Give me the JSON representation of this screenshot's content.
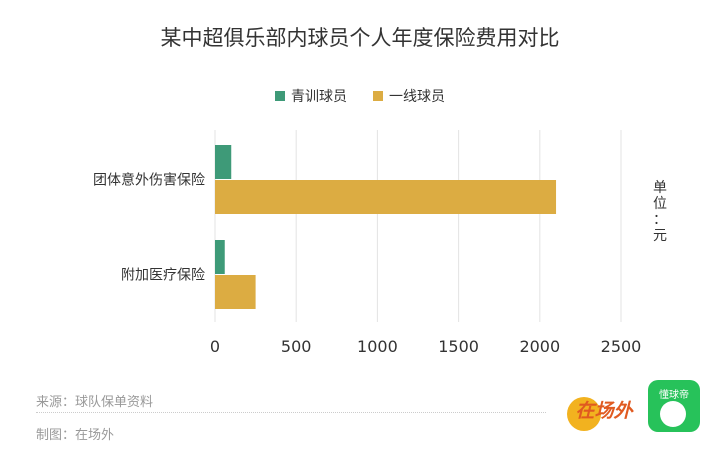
{
  "chart_data": {
    "type": "bar",
    "orientation": "horizontal",
    "title": "某中超俱乐部内球员个人年度保险费用对比",
    "categories": [
      "团体意外伤害保险",
      "附加医疗保险"
    ],
    "series": [
      {
        "name": "青训球员",
        "color": "#3e9a78",
        "values": [
          100,
          60
        ]
      },
      {
        "name": "一线球员",
        "color": "#dcac42",
        "values": [
          2100,
          250
        ]
      }
    ],
    "xlim": [
      0,
      2500
    ],
    "xticks": [
      0,
      500,
      1000,
      1500,
      2000,
      2500
    ],
    "unit_label": "单位：元",
    "grid": true,
    "legend_position": "top"
  },
  "footer": {
    "source": "来源：球队保单资料",
    "maker": "制图：在场外"
  },
  "logos": {
    "zaichangwai_text": "在场外",
    "dongqiudi_text": "懂球帝"
  },
  "colors": {
    "grid": "#e3e3e3",
    "text": "#333333",
    "footer_text": "#999999"
  }
}
